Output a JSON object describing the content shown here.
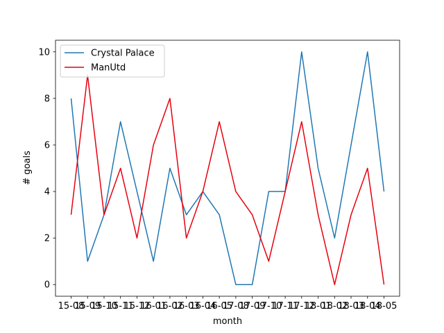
{
  "chart_data": {
    "type": "line",
    "xlabel": "month",
    "ylabel": "# goals",
    "categories": [
      "15-08",
      "15-09",
      "15-10",
      "15-11",
      "15-12",
      "16-01",
      "16-02",
      "16-03",
      "16-04",
      "16-05",
      "17-08",
      "17-09",
      "17-10",
      "17-11",
      "17-12",
      "18-01",
      "18-02",
      "18-03",
      "18-04",
      "18-05"
    ],
    "series": [
      {
        "name": "Crystal Palace",
        "color": "#1f77b4",
        "values": [
          8,
          1,
          3,
          7,
          4,
          1,
          5,
          3,
          4,
          3,
          0,
          0,
          4,
          4,
          10,
          5,
          2,
          6,
          10,
          4
        ]
      },
      {
        "name": "ManUtd",
        "color": "#e6000d",
        "values": [
          3,
          9,
          3,
          5,
          2,
          6,
          8,
          2,
          4,
          7,
          4,
          3,
          1,
          4,
          7,
          3,
          0,
          3,
          5,
          0
        ]
      }
    ],
    "yticks": [
      0,
      2,
      4,
      6,
      8,
      10
    ],
    "ylim": [
      -0.5,
      10.5
    ],
    "legend": "upper-left",
    "grid": false
  }
}
